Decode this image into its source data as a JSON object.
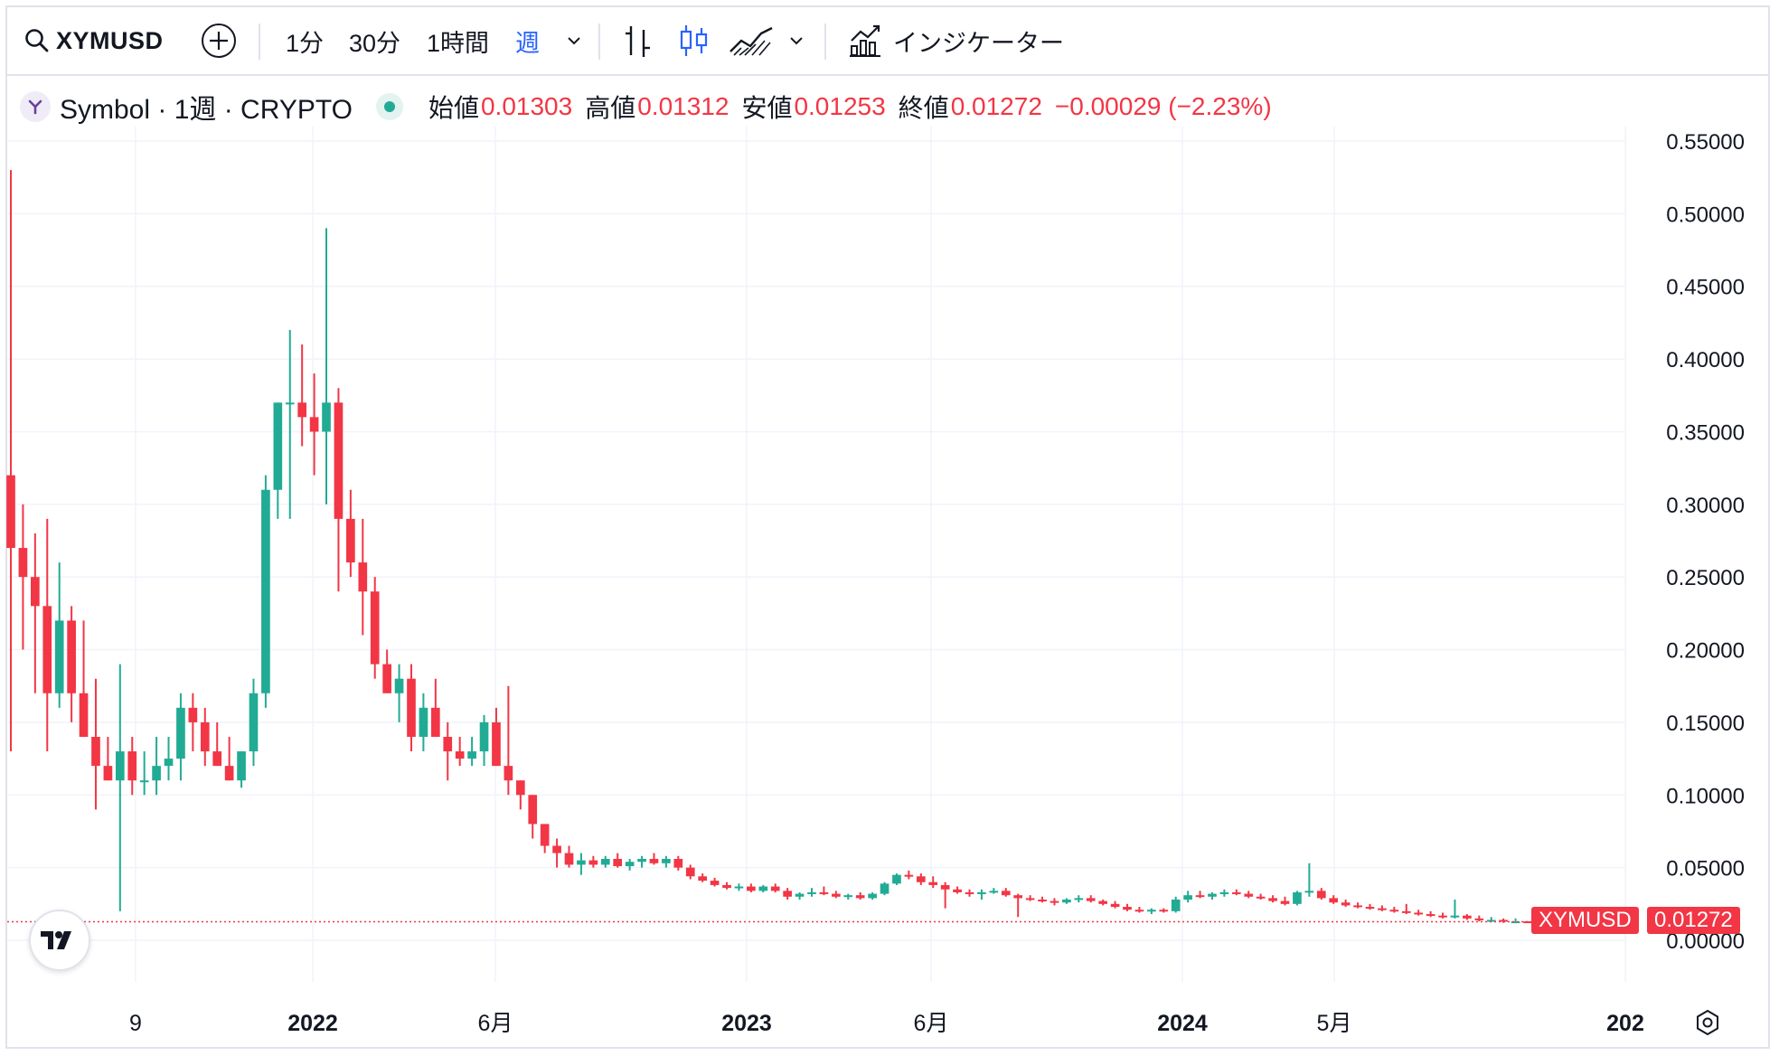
{
  "toolbar": {
    "symbol": "XYMUSD",
    "intervals": [
      "1分",
      "30分",
      "1時間",
      "週"
    ],
    "active_interval": "週",
    "indicators_label": "インジケーター",
    "icons": [
      "search-icon",
      "add-symbol-icon",
      "chevron-down-icon",
      "bar-style-icon",
      "candle-style-icon",
      "area-style-icon",
      "chevron-down-icon",
      "indicators-icon"
    ]
  },
  "legend": {
    "title": "Symbol · 1週 · CRYPTO",
    "open_label": "始値",
    "open": "0.01303",
    "high_label": "高値",
    "high": "0.01312",
    "low_label": "安値",
    "low": "0.01253",
    "close_label": "終値",
    "close": "0.01272",
    "change": "−0.00029 (−2.23%)"
  },
  "colors": {
    "up": "#22ab94",
    "down": "#f23645",
    "grid": "#f0f3fa",
    "text": "#131722",
    "accent": "#2962ff"
  },
  "price_tag": {
    "symbol": "XYMUSD",
    "value": "0.01272"
  },
  "chart_data": {
    "type": "candlestick",
    "y_ticks": [
      "0.55000",
      "0.50000",
      "0.45000",
      "0.40000",
      "0.35000",
      "0.30000",
      "0.25000",
      "0.20000",
      "0.15000",
      "0.10000",
      "0.05000",
      "0.00000"
    ],
    "ylim": [
      0.0,
      0.55
    ],
    "x_ticks": [
      "9",
      "2022",
      "6月",
      "2023",
      "6月",
      "2024",
      "5月",
      "202"
    ],
    "x_ticks_bold": [
      "2022",
      "2023",
      "2024",
      "202"
    ],
    "last_price": 0.01272,
    "candles": [
      [
        0.32,
        0.53,
        0.13,
        0.27
      ],
      [
        0.27,
        0.3,
        0.2,
        0.25
      ],
      [
        0.25,
        0.28,
        0.17,
        0.23
      ],
      [
        0.23,
        0.29,
        0.13,
        0.17
      ],
      [
        0.17,
        0.26,
        0.16,
        0.22
      ],
      [
        0.22,
        0.23,
        0.15,
        0.17
      ],
      [
        0.17,
        0.22,
        0.14,
        0.14
      ],
      [
        0.14,
        0.18,
        0.09,
        0.12
      ],
      [
        0.12,
        0.14,
        0.11,
        0.11
      ],
      [
        0.11,
        0.19,
        0.02,
        0.13
      ],
      [
        0.13,
        0.14,
        0.1,
        0.11
      ],
      [
        0.11,
        0.13,
        0.1,
        0.11
      ],
      [
        0.11,
        0.14,
        0.1,
        0.12
      ],
      [
        0.12,
        0.14,
        0.11,
        0.125
      ],
      [
        0.125,
        0.17,
        0.11,
        0.16
      ],
      [
        0.16,
        0.17,
        0.13,
        0.15
      ],
      [
        0.15,
        0.16,
        0.12,
        0.13
      ],
      [
        0.13,
        0.15,
        0.12,
        0.12
      ],
      [
        0.12,
        0.14,
        0.11,
        0.11
      ],
      [
        0.11,
        0.13,
        0.105,
        0.13
      ],
      [
        0.13,
        0.18,
        0.12,
        0.17
      ],
      [
        0.17,
        0.32,
        0.16,
        0.31
      ],
      [
        0.31,
        0.37,
        0.29,
        0.37
      ],
      [
        0.37,
        0.42,
        0.29,
        0.37
      ],
      [
        0.37,
        0.41,
        0.34,
        0.36
      ],
      [
        0.36,
        0.39,
        0.32,
        0.35
      ],
      [
        0.35,
        0.49,
        0.3,
        0.37
      ],
      [
        0.37,
        0.38,
        0.24,
        0.29
      ],
      [
        0.29,
        0.31,
        0.25,
        0.26
      ],
      [
        0.26,
        0.29,
        0.21,
        0.24
      ],
      [
        0.24,
        0.25,
        0.18,
        0.19
      ],
      [
        0.19,
        0.2,
        0.17,
        0.17
      ],
      [
        0.17,
        0.19,
        0.15,
        0.18
      ],
      [
        0.18,
        0.19,
        0.13,
        0.14
      ],
      [
        0.14,
        0.17,
        0.13,
        0.16
      ],
      [
        0.16,
        0.18,
        0.14,
        0.14
      ],
      [
        0.14,
        0.15,
        0.11,
        0.13
      ],
      [
        0.13,
        0.14,
        0.12,
        0.125
      ],
      [
        0.125,
        0.14,
        0.12,
        0.13
      ],
      [
        0.13,
        0.155,
        0.12,
        0.15
      ],
      [
        0.15,
        0.16,
        0.12,
        0.12
      ],
      [
        0.12,
        0.175,
        0.1,
        0.11
      ],
      [
        0.11,
        0.11,
        0.09,
        0.1
      ],
      [
        0.1,
        0.1,
        0.07,
        0.08
      ],
      [
        0.08,
        0.08,
        0.06,
        0.065
      ],
      [
        0.065,
        0.07,
        0.05,
        0.06
      ],
      [
        0.06,
        0.065,
        0.05,
        0.052
      ],
      [
        0.052,
        0.06,
        0.045,
        0.055
      ],
      [
        0.055,
        0.058,
        0.05,
        0.052
      ],
      [
        0.052,
        0.058,
        0.05,
        0.056
      ],
      [
        0.056,
        0.06,
        0.05,
        0.051
      ],
      [
        0.051,
        0.056,
        0.048,
        0.054
      ],
      [
        0.054,
        0.058,
        0.05,
        0.056
      ],
      [
        0.056,
        0.06,
        0.052,
        0.053
      ],
      [
        0.053,
        0.058,
        0.05,
        0.056
      ],
      [
        0.056,
        0.058,
        0.048,
        0.05
      ],
      [
        0.05,
        0.052,
        0.042,
        0.044
      ],
      [
        0.044,
        0.046,
        0.04,
        0.041
      ],
      [
        0.041,
        0.043,
        0.037,
        0.038
      ],
      [
        0.038,
        0.04,
        0.035,
        0.036
      ],
      [
        0.036,
        0.039,
        0.034,
        0.037
      ],
      [
        0.037,
        0.039,
        0.033,
        0.034
      ],
      [
        0.034,
        0.038,
        0.033,
        0.037
      ],
      [
        0.037,
        0.039,
        0.033,
        0.034
      ],
      [
        0.034,
        0.036,
        0.028,
        0.03
      ],
      [
        0.03,
        0.033,
        0.028,
        0.032
      ],
      [
        0.032,
        0.036,
        0.03,
        0.033
      ],
      [
        0.033,
        0.037,
        0.031,
        0.032
      ],
      [
        0.032,
        0.034,
        0.029,
        0.03
      ],
      [
        0.03,
        0.032,
        0.028,
        0.031
      ],
      [
        0.031,
        0.033,
        0.028,
        0.029
      ],
      [
        0.029,
        0.033,
        0.028,
        0.032
      ],
      [
        0.032,
        0.04,
        0.031,
        0.039
      ],
      [
        0.039,
        0.046,
        0.038,
        0.045
      ],
      [
        0.045,
        0.048,
        0.042,
        0.044
      ],
      [
        0.044,
        0.046,
        0.038,
        0.04
      ],
      [
        0.04,
        0.044,
        0.036,
        0.038
      ],
      [
        0.038,
        0.04,
        0.022,
        0.035
      ],
      [
        0.035,
        0.037,
        0.032,
        0.033
      ],
      [
        0.033,
        0.035,
        0.03,
        0.032
      ],
      [
        0.032,
        0.035,
        0.028,
        0.033
      ],
      [
        0.033,
        0.036,
        0.032,
        0.034
      ],
      [
        0.034,
        0.036,
        0.03,
        0.031
      ],
      [
        0.031,
        0.032,
        0.016,
        0.029
      ],
      [
        0.029,
        0.031,
        0.027,
        0.028
      ],
      [
        0.028,
        0.03,
        0.026,
        0.027
      ],
      [
        0.027,
        0.029,
        0.024,
        0.026
      ],
      [
        0.026,
        0.029,
        0.025,
        0.028
      ],
      [
        0.028,
        0.031,
        0.026,
        0.029
      ],
      [
        0.029,
        0.031,
        0.026,
        0.027
      ],
      [
        0.027,
        0.028,
        0.024,
        0.025
      ],
      [
        0.025,
        0.027,
        0.022,
        0.023
      ],
      [
        0.023,
        0.025,
        0.02,
        0.021
      ],
      [
        0.021,
        0.023,
        0.019,
        0.02
      ],
      [
        0.02,
        0.022,
        0.018,
        0.021
      ],
      [
        0.021,
        0.022,
        0.019,
        0.02
      ],
      [
        0.02,
        0.03,
        0.019,
        0.028
      ],
      [
        0.028,
        0.034,
        0.026,
        0.031
      ],
      [
        0.031,
        0.034,
        0.029,
        0.03
      ],
      [
        0.03,
        0.033,
        0.028,
        0.032
      ],
      [
        0.032,
        0.035,
        0.03,
        0.033
      ],
      [
        0.033,
        0.035,
        0.031,
        0.032
      ],
      [
        0.032,
        0.034,
        0.029,
        0.03
      ],
      [
        0.03,
        0.032,
        0.028,
        0.029
      ],
      [
        0.029,
        0.031,
        0.026,
        0.027
      ],
      [
        0.027,
        0.03,
        0.024,
        0.025
      ],
      [
        0.025,
        0.034,
        0.024,
        0.033
      ],
      [
        0.033,
        0.053,
        0.03,
        0.034
      ],
      [
        0.034,
        0.036,
        0.028,
        0.029
      ],
      [
        0.029,
        0.031,
        0.025,
        0.026
      ],
      [
        0.026,
        0.028,
        0.023,
        0.024
      ],
      [
        0.024,
        0.026,
        0.022,
        0.023
      ],
      [
        0.023,
        0.025,
        0.021,
        0.022
      ],
      [
        0.022,
        0.024,
        0.02,
        0.021
      ],
      [
        0.021,
        0.023,
        0.019,
        0.02
      ],
      [
        0.02,
        0.025,
        0.018,
        0.019
      ],
      [
        0.019,
        0.021,
        0.017,
        0.018
      ],
      [
        0.018,
        0.02,
        0.016,
        0.017
      ],
      [
        0.017,
        0.019,
        0.015,
        0.016
      ],
      [
        0.016,
        0.028,
        0.015,
        0.017
      ],
      [
        0.017,
        0.018,
        0.014,
        0.015
      ],
      [
        0.015,
        0.017,
        0.013,
        0.014
      ],
      [
        0.014,
        0.016,
        0.013,
        0.014
      ],
      [
        0.014,
        0.015,
        0.012,
        0.013
      ],
      [
        0.013,
        0.015,
        0.012,
        0.013
      ],
      [
        0.01303,
        0.01312,
        0.01253,
        0.01272
      ]
    ]
  }
}
